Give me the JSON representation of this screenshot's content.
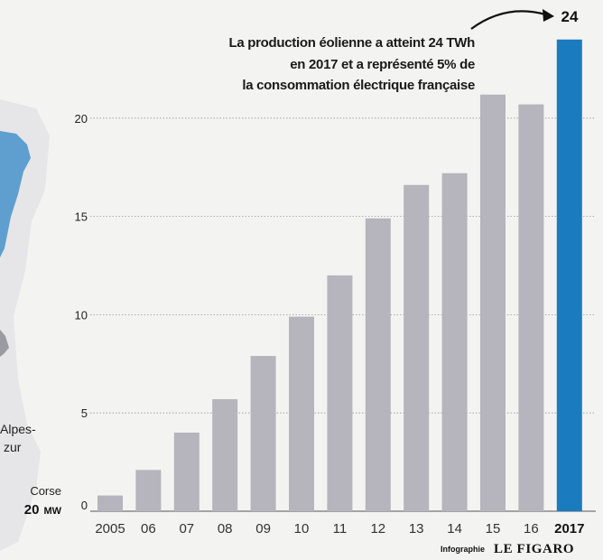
{
  "chart_data": {
    "type": "bar",
    "categories": [
      "2005",
      "06",
      "07",
      "08",
      "09",
      "10",
      "11",
      "12",
      "13",
      "14",
      "15",
      "16",
      "2017"
    ],
    "values": [
      0.8,
      2.1,
      4.0,
      5.7,
      7.9,
      9.9,
      12.0,
      14.9,
      16.6,
      17.2,
      21.2,
      20.7,
      24
    ],
    "highlight_index": 12,
    "highlight_value_label": "24",
    "yticks": [
      0,
      5,
      10,
      15,
      20
    ],
    "ylim": [
      0,
      25
    ],
    "grid": true,
    "annotation": [
      "La production éolienne a atteint 24 TWh",
      "en 2017 et a représenté 5% de",
      "la consommation électrique française"
    ],
    "colors": {
      "bars": "#b6b4bc",
      "highlight": "#1a7bbf"
    }
  },
  "map": {
    "region_fragment_top": "Alpes-",
    "region_fragment_bottom": "zur",
    "corse_label": "Corse",
    "corse_value": "20",
    "corse_unit": "MW",
    "colors": {
      "region_fill": "#5f9fcf",
      "land": "#e6e6e8"
    }
  },
  "credit": {
    "prefix": "Infographie",
    "brand": "LE FIGARO"
  }
}
